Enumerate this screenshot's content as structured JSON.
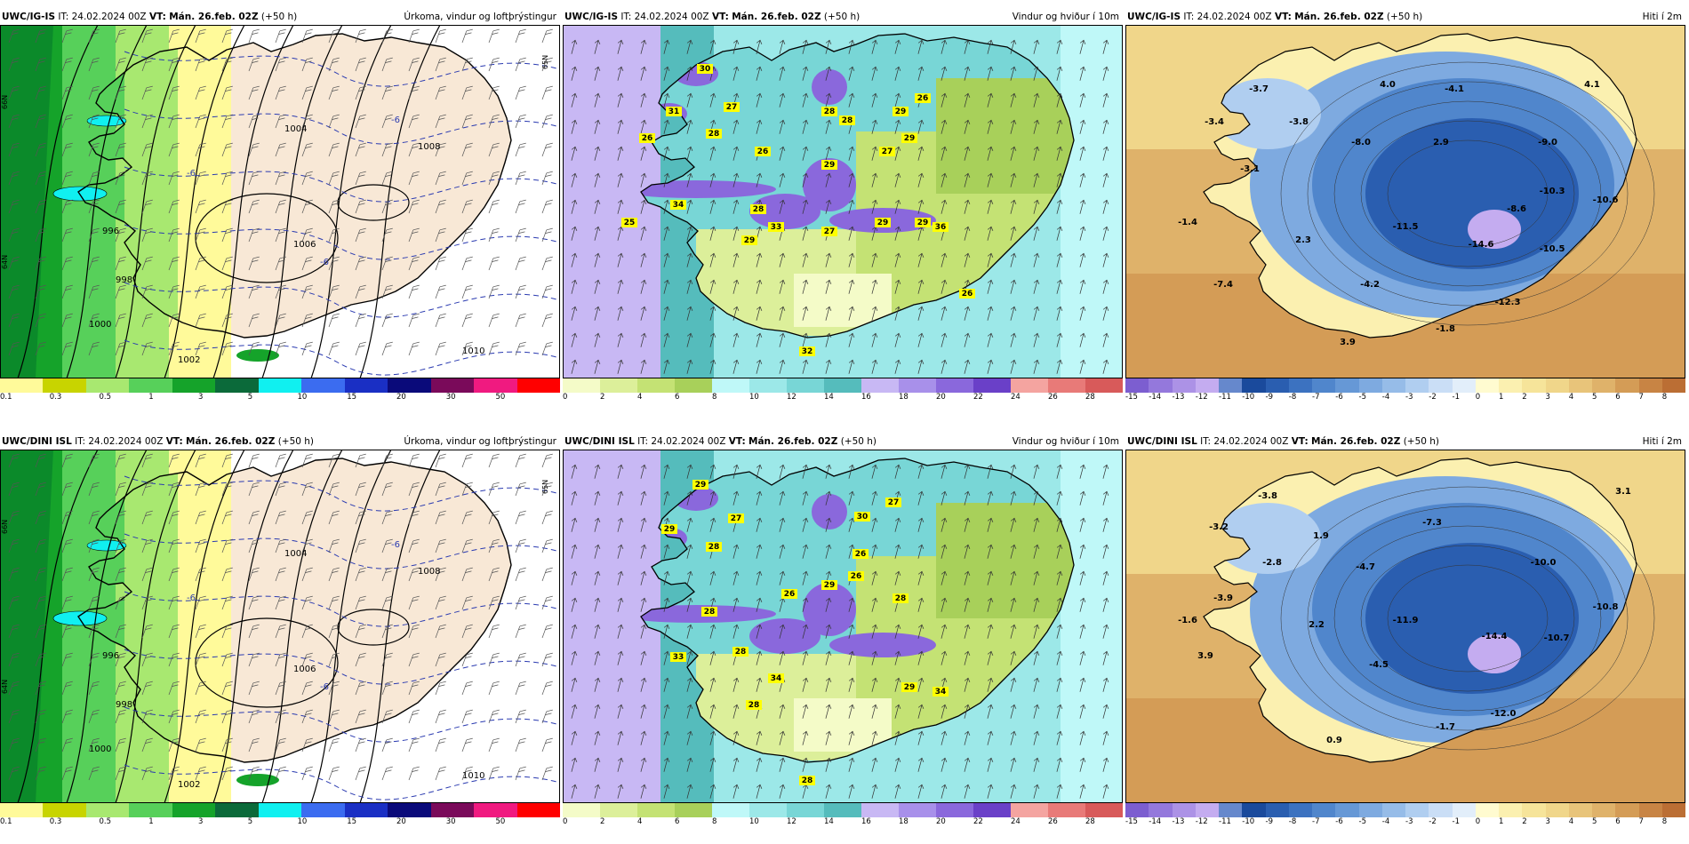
{
  "panels": [
    {
      "model": "UWC/IG-IS",
      "it_label": "IT:",
      "it_value": "24.02.2024 00Z",
      "vt_label": "VT:",
      "vt_value": "Mán. 26.feb. 02Z",
      "lead": "(+50 h)",
      "title": "Úrkoma, vindur og loftþrýstingur",
      "type": "precip",
      "scale_labels": [
        "0.1",
        "0.3",
        "0.5",
        "1",
        "3",
        "5",
        "10",
        "15",
        "20",
        "30",
        "50"
      ],
      "scale_colors": [
        "#fffa9a",
        "#c8d400",
        "#a8e870",
        "#57d05a",
        "#15a32a",
        "#0b6a3a",
        "#10f0f0",
        "#3b6cf0",
        "#1a2fc4",
        "#0a0a7a",
        "#7a0a5a",
        "#f01a80",
        "#ff0000"
      ],
      "contour_labels": [
        "996",
        "998",
        "1000",
        "1002",
        "1004",
        "1006",
        "1008",
        "1010",
        "-6",
        "-6",
        "-6"
      ],
      "lat_labels": [
        "66N",
        "64N",
        "65N"
      ]
    },
    {
      "model": "UWC/IG-IS",
      "it_label": "IT:",
      "it_value": "24.02.2024 00Z",
      "vt_label": "VT:",
      "vt_value": "Mán. 26.feb. 02Z",
      "lead": "(+50 h)",
      "title": "Vindur og hviður í 10m",
      "type": "wind",
      "scale_labels": [
        "0",
        "2",
        "4",
        "6",
        "8",
        "10",
        "12",
        "14",
        "16",
        "18",
        "20",
        "22",
        "24",
        "26",
        "28"
      ],
      "scale_colors": [
        "#f4fbc8",
        "#dcef9a",
        "#c4e274",
        "#a8d05a",
        "#bff8f8",
        "#9ce8e8",
        "#78d6d6",
        "#55bcbc",
        "#c8b8f4",
        "#a890ea",
        "#8a68dc",
        "#6a40c8",
        "#f4a4a0",
        "#e87a78",
        "#d85a5a"
      ],
      "gust_values": [
        "30",
        "31",
        "27",
        "26",
        "28",
        "28",
        "26",
        "29",
        "28",
        "27",
        "26",
        "34",
        "29",
        "29",
        "28",
        "33",
        "29",
        "27",
        "29",
        "36",
        "29",
        "25",
        "26",
        "32"
      ]
    },
    {
      "model": "UWC/IG-IS",
      "it_label": "IT:",
      "it_value": "24.02.2024 00Z",
      "vt_label": "VT:",
      "vt_value": "Mán. 26.feb. 02Z",
      "lead": "(+50 h)",
      "title": "Hiti í 2m",
      "type": "temp",
      "scale_labels": [
        "-15",
        "-14",
        "-13",
        "-12",
        "-11",
        "-10",
        "-9",
        "-8",
        "-7",
        "-6",
        "-5",
        "-4",
        "-3",
        "-2",
        "-1",
        "0",
        "1",
        "2",
        "3",
        "4",
        "5",
        "6",
        "7",
        "8"
      ],
      "scale_colors": [
        "#7c5ed0",
        "#9478dc",
        "#ac92e6",
        "#c4acf0",
        "#6688cc",
        "#1a4a9c",
        "#2a5eb0",
        "#3c72c0",
        "#5086cc",
        "#6698d6",
        "#7eaae0",
        "#96bce8",
        "#b0cef0",
        "#cadef6",
        "#e2eefa",
        "#fffbd0",
        "#fbf0b0",
        "#f6e49a",
        "#f0d68a",
        "#e8c47a",
        "#dfb26a",
        "#d49c56",
        "#c88444",
        "#bb6e34"
      ],
      "temp_values": [
        "-3.7",
        "4.0",
        "-4.1",
        "4.1",
        "-3.4",
        "-3.8",
        "-8.0",
        "2.9",
        "-9.0",
        "-3.1",
        "-10.3",
        "-10.6",
        "-1.4",
        "-8.6",
        "2.3",
        "-11.5",
        "-10.5",
        "-14.6",
        "-7.4",
        "-4.2",
        "-12.3",
        "-1.8",
        "3.9"
      ]
    },
    {
      "model": "UWC/DINI ISL",
      "it_label": "IT:",
      "it_value": "24.02.2024 00Z",
      "vt_label": "VT:",
      "vt_value": "Mán. 26.feb. 02Z",
      "lead": "(+50 h)",
      "title": "Úrkoma, vindur og loftþrýstingur",
      "type": "precip",
      "scale_labels": [
        "0.1",
        "0.3",
        "0.5",
        "1",
        "3",
        "5",
        "10",
        "15",
        "20",
        "30",
        "50"
      ],
      "scale_colors": [
        "#fffa9a",
        "#c8d400",
        "#a8e870",
        "#57d05a",
        "#15a32a",
        "#0b6a3a",
        "#10f0f0",
        "#3b6cf0",
        "#1a2fc4",
        "#0a0a7a",
        "#7a0a5a",
        "#f01a80",
        "#ff0000"
      ],
      "contour_labels": [
        "996",
        "998",
        "1000",
        "1002",
        "1004",
        "1006",
        "1008",
        "1010",
        "-6",
        "-6",
        "-6"
      ],
      "lat_labels": [
        "66N",
        "64N",
        "65N"
      ]
    },
    {
      "model": "UWC/DINI ISL",
      "it_label": "IT:",
      "it_value": "24.02.2024 00Z",
      "vt_label": "VT:",
      "vt_value": "Mán. 26.feb. 02Z",
      "lead": "(+50 h)",
      "title": "Vindur og hviður í 10m",
      "type": "wind",
      "scale_labels": [
        "0",
        "2",
        "4",
        "6",
        "8",
        "10",
        "12",
        "14",
        "16",
        "18",
        "20",
        "22",
        "24",
        "26",
        "28"
      ],
      "scale_colors": [
        "#f4fbc8",
        "#dcef9a",
        "#c4e274",
        "#a8d05a",
        "#bff8f8",
        "#9ce8e8",
        "#78d6d6",
        "#55bcbc",
        "#c8b8f4",
        "#a890ea",
        "#8a68dc",
        "#6a40c8",
        "#f4a4a0",
        "#e87a78",
        "#d85a5a"
      ],
      "gust_values": [
        "29",
        "29",
        "27",
        "28",
        "26",
        "30",
        "27",
        "26",
        "29",
        "28",
        "26",
        "28",
        "33",
        "28",
        "34",
        "28",
        "29",
        "34",
        "28"
      ]
    },
    {
      "model": "UWC/DINI ISL",
      "it_label": "IT:",
      "it_value": "24.02.2024 00Z",
      "vt_label": "VT:",
      "vt_value": "Mán. 26.feb. 02Z",
      "lead": "(+50 h)",
      "title": "Hiti í 2m",
      "type": "temp",
      "scale_labels": [
        "-15",
        "-14",
        "-13",
        "-12",
        "-11",
        "-10",
        "-9",
        "-8",
        "-7",
        "-6",
        "-5",
        "-4",
        "-3",
        "-2",
        "-1",
        "0",
        "1",
        "2",
        "3",
        "4",
        "5",
        "6",
        "7",
        "8"
      ],
      "scale_colors": [
        "#7c5ed0",
        "#9478dc",
        "#ac92e6",
        "#c4acf0",
        "#6688cc",
        "#1a4a9c",
        "#2a5eb0",
        "#3c72c0",
        "#5086cc",
        "#6698d6",
        "#7eaae0",
        "#96bce8",
        "#b0cef0",
        "#cadef6",
        "#e2eefa",
        "#fffbd0",
        "#fbf0b0",
        "#f6e49a",
        "#f0d68a",
        "#e8c47a",
        "#dfb26a",
        "#d49c56",
        "#c88444",
        "#bb6e34"
      ],
      "temp_values": [
        "-3.8",
        "3.1",
        "-3.2",
        "1.9",
        "-7.3",
        "-2.8",
        "-4.7",
        "-10.0",
        "-3.9",
        "-10.8",
        "-1.6",
        "2.2",
        "-11.9",
        "-10.7",
        "3.9",
        "-14.4",
        "-4.5",
        "-12.0",
        "-1.7",
        "0.9"
      ]
    }
  ]
}
